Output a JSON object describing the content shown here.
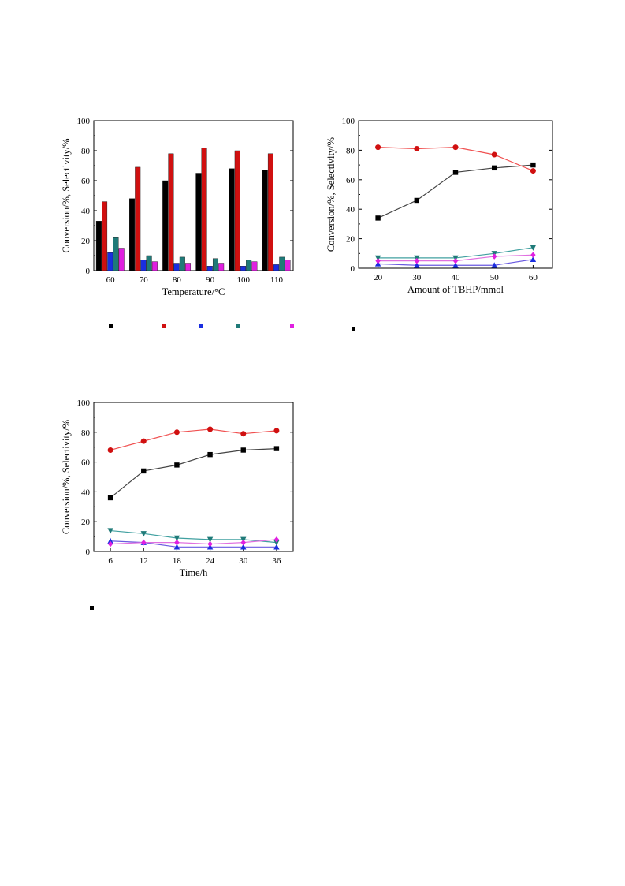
{
  "colors": {
    "black": "#000000",
    "red": "#d01010",
    "blue": "#1a2ee0",
    "teal": "#1f7a78",
    "magenta": "#e020e0",
    "line_black": "#444444",
    "line_red": "#f05050",
    "line_blue": "#6a5ae0",
    "line_teal": "#40a0a0",
    "line_magenta": "#e070e0"
  },
  "chart_data": [
    {
      "type": "bar",
      "xlabel": "Temperature/°C",
      "ylabel": "Conversion/%, Selectivity/%",
      "ylim": [
        0,
        100
      ],
      "yticks": [
        "0",
        "20",
        "40",
        "60",
        "80",
        "100"
      ],
      "categories": [
        "60",
        "70",
        "80",
        "90",
        "100",
        "110"
      ],
      "series": [
        {
          "color": "black",
          "values": [
            33,
            48,
            60,
            65,
            68,
            67
          ]
        },
        {
          "color": "red",
          "values": [
            46,
            69,
            78,
            82,
            80,
            78
          ]
        },
        {
          "color": "blue",
          "values": [
            12,
            7,
            5,
            3,
            3,
            4
          ]
        },
        {
          "color": "teal",
          "values": [
            22,
            10,
            9,
            8,
            7,
            9
          ]
        },
        {
          "color": "magenta",
          "values": [
            15,
            6,
            5,
            5,
            6,
            7
          ]
        }
      ]
    },
    {
      "type": "line",
      "xlabel": "Amount of TBHP/mmol",
      "ylabel": "Conversion/%, Selectivity/%",
      "xlim": [
        15,
        65
      ],
      "ylim": [
        0,
        100
      ],
      "xticks": [
        "20",
        "30",
        "40",
        "50",
        "60"
      ],
      "yticks": [
        "0",
        "20",
        "40",
        "60",
        "80",
        "100"
      ],
      "x": [
        20,
        30,
        40,
        50,
        60
      ],
      "series": [
        {
          "marker": "square",
          "color": "black",
          "line": "line_black",
          "values": [
            34,
            46,
            65,
            68,
            70
          ]
        },
        {
          "marker": "circle",
          "color": "red",
          "line": "line_red",
          "values": [
            82,
            81,
            82,
            77,
            66
          ]
        },
        {
          "marker": "triangle-up",
          "color": "blue",
          "line": "line_blue",
          "values": [
            3,
            2,
            2,
            2,
            6
          ]
        },
        {
          "marker": "triangle-down",
          "color": "teal",
          "line": "line_teal",
          "values": [
            7,
            7,
            7,
            10,
            14
          ]
        },
        {
          "marker": "diamond",
          "color": "magenta",
          "line": "line_magenta",
          "values": [
            5,
            5,
            5,
            8,
            9
          ]
        }
      ]
    },
    {
      "type": "line",
      "xlabel": "Time/h",
      "ylabel": "Conversion/%, Selectivity/%",
      "xlim": [
        3,
        39
      ],
      "ylim": [
        0,
        100
      ],
      "xticks": [
        "6",
        "12",
        "18",
        "24",
        "30",
        "36"
      ],
      "yticks": [
        "0",
        "20",
        "40",
        "60",
        "80",
        "100"
      ],
      "x": [
        6,
        12,
        18,
        24,
        30,
        36
      ],
      "series": [
        {
          "marker": "square",
          "color": "black",
          "line": "line_black",
          "values": [
            36,
            54,
            58,
            65,
            68,
            69
          ]
        },
        {
          "marker": "circle",
          "color": "red",
          "line": "line_red",
          "values": [
            68,
            74,
            80,
            82,
            79,
            81
          ]
        },
        {
          "marker": "triangle-up",
          "color": "blue",
          "line": "line_blue",
          "values": [
            7,
            6,
            3,
            3,
            3,
            3
          ]
        },
        {
          "marker": "triangle-down",
          "color": "teal",
          "line": "line_teal",
          "values": [
            14,
            12,
            9,
            8,
            8,
            6
          ]
        },
        {
          "marker": "diamond",
          "color": "magenta",
          "line": "line_magenta",
          "values": [
            5,
            6,
            6,
            5,
            6,
            8
          ]
        }
      ]
    }
  ],
  "legend_markers": [
    "black",
    "red",
    "blue",
    "teal",
    "magenta",
    "black",
    "black"
  ]
}
